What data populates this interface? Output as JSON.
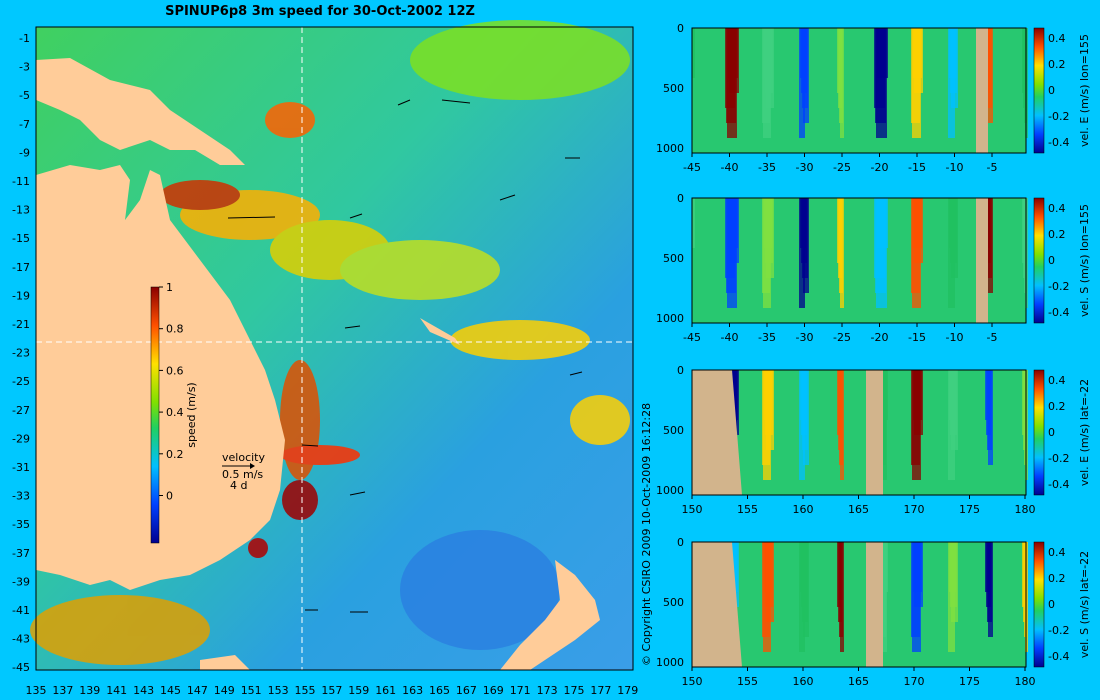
{
  "title": "SPINUP6p8 3m speed for 30-Oct-2002 12Z",
  "copyright": "© Copyright CSIRO 2009  10-Oct-2009 16:12:28",
  "map": {
    "lon_ticks": [
      "135",
      "137",
      "139",
      "141",
      "143",
      "145",
      "147",
      "149",
      "151",
      "153",
      "155",
      "157",
      "159",
      "161",
      "163",
      "165",
      "167",
      "169",
      "171",
      "173",
      "175",
      "177",
      "179"
    ],
    "lat_ticks": [
      "-1",
      "-3",
      "-5",
      "-7",
      "-9",
      "-11",
      "-13",
      "-15",
      "-17",
      "-19",
      "-21",
      "-23",
      "-25",
      "-27",
      "-29",
      "-31",
      "-33",
      "-35",
      "-37",
      "-39",
      "-41",
      "-43",
      "-45"
    ],
    "colorbar_label": "speed (m/s)",
    "colorbar_ticks": [
      "1",
      "0.8",
      "0.6",
      "0.4",
      "0.2",
      "0"
    ],
    "velocity_legend": {
      "title": "velocity",
      "speed": "0.5 m/s",
      "days": "4 d"
    }
  },
  "panels": [
    {
      "label": "vel. E (m/s) lon=155",
      "x_ticks": [
        "-45",
        "-40",
        "-35",
        "-30",
        "-25",
        "-20",
        "-15",
        "-10",
        "-5"
      ],
      "y_ticks": [
        "0",
        "500",
        "1000"
      ],
      "cbar_ticks": [
        "0.4",
        "0.2",
        "0",
        "-0.2",
        "-0.4"
      ]
    },
    {
      "label": "vel. S (m/s) lon=155",
      "x_ticks": [
        "-45",
        "-40",
        "-35",
        "-30",
        "-25",
        "-20",
        "-15",
        "-10",
        "-5"
      ],
      "y_ticks": [
        "0",
        "500",
        "1000"
      ],
      "cbar_ticks": [
        "0.4",
        "0.2",
        "0",
        "-0.2",
        "-0.4"
      ]
    },
    {
      "label": "vel. E (m/s) lat=-22",
      "x_ticks": [
        "150",
        "155",
        "160",
        "165",
        "170",
        "175",
        "180"
      ],
      "y_ticks": [
        "0",
        "500",
        "1000"
      ],
      "cbar_ticks": [
        "0.4",
        "0.2",
        "0",
        "-0.2",
        "-0.4"
      ]
    },
    {
      "label": "vel. S (m/s) lat=-22",
      "x_ticks": [
        "150",
        "155",
        "160",
        "165",
        "170",
        "175",
        "180"
      ],
      "y_ticks": [
        "0",
        "500",
        "1000"
      ],
      "cbar_ticks": [
        "0.4",
        "0.2",
        "0",
        "-0.2",
        "-0.4"
      ]
    }
  ]
}
